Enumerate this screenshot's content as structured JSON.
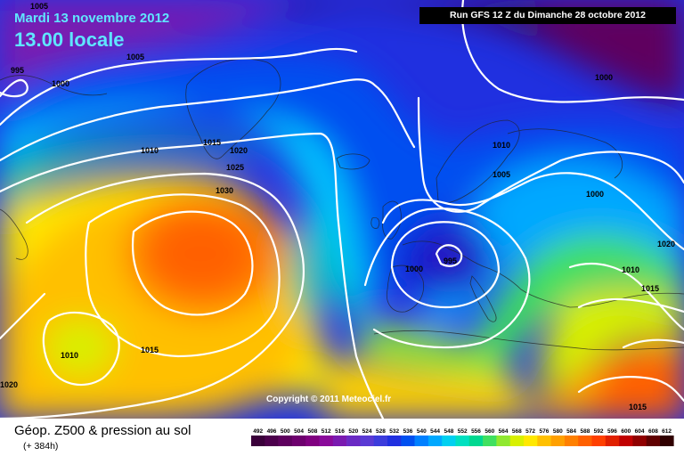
{
  "header": {
    "date": "Mardi 13 novembre 2012",
    "time": "13.00 locale"
  },
  "run_info": "Run GFS 12 Z du Dimanche 28 octobre 2012",
  "copyright": "Copyright © 2011 Meteociel.fr",
  "footer": {
    "title": "Géop. Z500 & pression au sol",
    "subtitle": "(+ 384h)"
  },
  "scale": {
    "values": [
      "492",
      "496",
      "500",
      "504",
      "508",
      "512",
      "516",
      "520",
      "524",
      "528",
      "532",
      "536",
      "540",
      "544",
      "548",
      "552",
      "556",
      "560",
      "564",
      "568",
      "572",
      "576",
      "580",
      "584",
      "588",
      "592",
      "596",
      "600",
      "604",
      "608",
      "612"
    ],
    "colors": [
      "#3a003a",
      "#4c004c",
      "#5e005e",
      "#6e006e",
      "#800080",
      "#8a0a9a",
      "#7a1ab0",
      "#6a2ac4",
      "#5a3ad4",
      "#3c3cdc",
      "#2030e0",
      "#0050f0",
      "#0080ff",
      "#00a8ff",
      "#00d0f0",
      "#00e0c0",
      "#00d890",
      "#40e060",
      "#90e830",
      "#d8f000",
      "#ffe800",
      "#ffc000",
      "#ffa000",
      "#ff8000",
      "#ff6000",
      "#ff4000",
      "#e02000",
      "#c00000",
      "#900000",
      "#600000",
      "#300000"
    ]
  },
  "isobars": [
    {
      "label": "1005"
    },
    {
      "label": "995"
    },
    {
      "label": "1000"
    },
    {
      "label": "1005"
    },
    {
      "label": "1010"
    },
    {
      "label": "1015"
    },
    {
      "label": "1020"
    },
    {
      "label": "1025"
    },
    {
      "label": "1030"
    },
    {
      "label": "1010"
    },
    {
      "label": "1015"
    },
    {
      "label": "1020"
    },
    {
      "label": "1010"
    },
    {
      "label": "1005"
    },
    {
      "label": "1000"
    },
    {
      "label": "995"
    },
    {
      "label": "1000"
    },
    {
      "label": "1000"
    },
    {
      "label": "1020"
    },
    {
      "label": "1010"
    },
    {
      "label": "1015"
    },
    {
      "label": "1015"
    }
  ],
  "colors": {
    "low_center": "#2030e0",
    "high_center": "#ff6000"
  }
}
